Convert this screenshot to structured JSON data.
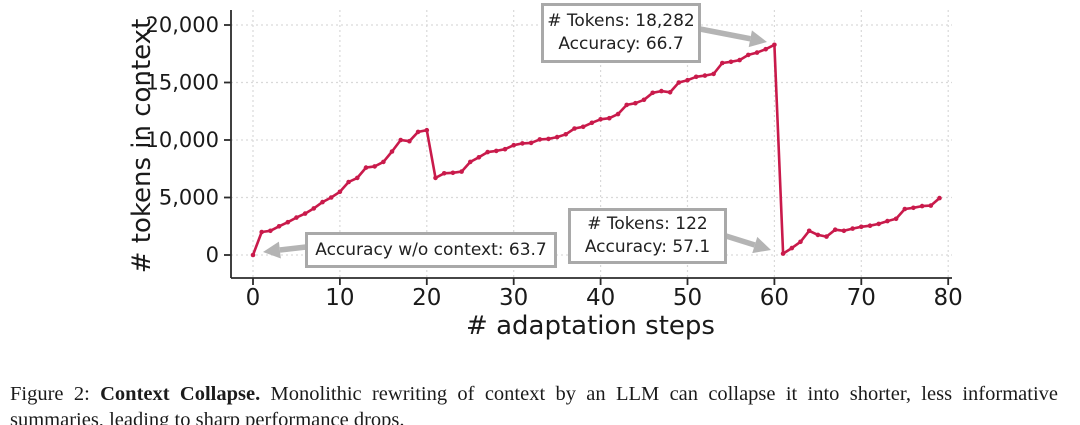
{
  "figure": {
    "caption_prefix": "Figure 2:",
    "caption_title": "Context Collapse.",
    "caption_body": "Monolithic rewriting of context by an LLM can collapse it into shorter, less informative summaries, leading to sharp performance drops."
  },
  "colors": {
    "line": "#C91A4B",
    "grid": "#d9d9d9",
    "spine": "#2b2b2b",
    "tick_text": "#1a1a1a",
    "annotation_border": "#a9a9a9",
    "arrow": "#b4b4b4"
  },
  "chart_data": {
    "type": "line",
    "title": "",
    "xlabel": "# adaptation steps",
    "ylabel": "# tokens in context",
    "xlim": [
      0,
      80
    ],
    "ylim": [
      0,
      20000
    ],
    "grid": true,
    "legend": "none",
    "x_ticks": [
      0,
      10,
      20,
      30,
      40,
      50,
      60,
      70,
      80
    ],
    "y_ticks": [
      0,
      5000,
      10000,
      15000,
      20000
    ],
    "y_tick_labels": [
      "0",
      "5,000",
      "10,000",
      "15,000",
      "20,000"
    ],
    "series": [
      {
        "name": "tokens in context",
        "color": "#C91A4B",
        "marker": "dot",
        "x": [
          0,
          1,
          2,
          3,
          4,
          5,
          6,
          7,
          8,
          9,
          10,
          11,
          12,
          13,
          14,
          15,
          16,
          17,
          18,
          19,
          20,
          21,
          22,
          23,
          24,
          25,
          26,
          27,
          28,
          29,
          30,
          31,
          32,
          33,
          34,
          35,
          36,
          37,
          38,
          39,
          40,
          41,
          42,
          43,
          44,
          45,
          46,
          47,
          48,
          49,
          50,
          51,
          52,
          53,
          54,
          55,
          56,
          57,
          58,
          59,
          60,
          61,
          62,
          63,
          64,
          65,
          66,
          67,
          68,
          69,
          70,
          71,
          72,
          73,
          74,
          75,
          76,
          77,
          78,
          79
        ],
        "y": [
          0,
          2000,
          2100,
          2500,
          2850,
          3250,
          3600,
          4050,
          4600,
          5000,
          5500,
          6350,
          6700,
          7600,
          7700,
          8100,
          9000,
          10000,
          9900,
          10700,
          10850,
          6700,
          7100,
          7150,
          7250,
          8100,
          8500,
          8950,
          9050,
          9200,
          9550,
          9700,
          9750,
          10050,
          10100,
          10250,
          10500,
          11000,
          11150,
          11500,
          11800,
          11900,
          12250,
          13050,
          13200,
          13500,
          14100,
          14250,
          14150,
          15000,
          15200,
          15500,
          15600,
          15750,
          16700,
          16800,
          16950,
          17400,
          17600,
          17900,
          18282,
          122,
          600,
          1150,
          2100,
          1750,
          1600,
          2200,
          2100,
          2300,
          2450,
          2550,
          2700,
          2950,
          3150,
          4000,
          4100,
          4250,
          4300,
          4950
        ]
      }
    ],
    "annotations": [
      {
        "id": "peak",
        "lines": [
          "# Tokens: 18,282",
          "Accuracy: 66.7"
        ],
        "target_step": 60,
        "target_tokens": 18282,
        "accuracy": 66.7
      },
      {
        "id": "collapse",
        "lines": [
          "# Tokens: 122",
          "Accuracy: 57.1"
        ],
        "target_step": 61,
        "target_tokens": 122,
        "accuracy": 57.1
      },
      {
        "id": "nocontext",
        "lines": [
          "Accuracy w/o context: 63.7"
        ],
        "target_step": 0,
        "target_tokens": 0,
        "accuracy": 63.7
      }
    ]
  }
}
